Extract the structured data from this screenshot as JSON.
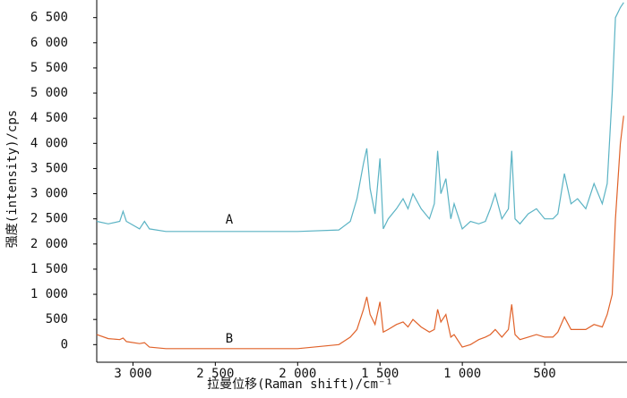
{
  "chart_data": {
    "type": "line",
    "xlabel": "拉曼位移(Raman shift)/cm⁻¹",
    "ylabel": "强度(intensity)/cps",
    "annotations": [
      "A",
      "B"
    ],
    "xlim": [
      3220,
      0
    ],
    "xticks": [
      {
        "value": 3000,
        "label": "3 000"
      },
      {
        "value": 2500,
        "label": "2 500"
      },
      {
        "value": 2000,
        "label": "2 000"
      },
      {
        "value": 1500,
        "label": "1 500"
      },
      {
        "value": 1000,
        "label": "1 000"
      },
      500
    ],
    "ylim": [
      -350,
      6850
    ],
    "yticks": [
      0,
      500,
      {
        "value": 1000,
        "label": "1 000"
      },
      {
        "value": 1500,
        "label": "1 500"
      },
      {
        "value": 2000,
        "label": "2 000"
      },
      {
        "value": 2500,
        "label": "2 500"
      },
      {
        "value": 3000,
        "label": "3 000"
      },
      {
        "value": 3500,
        "label": "3 500"
      },
      {
        "value": 4000,
        "label": "4 000"
      },
      {
        "value": 4500,
        "label": "4 500"
      },
      {
        "value": 5000,
        "label": "5 000"
      },
      {
        "value": 5500,
        "label": "5 500"
      },
      {
        "value": 6000,
        "label": "6 000"
      },
      {
        "value": 6500,
        "label": "6 500"
      }
    ],
    "x": [
      3220,
      3150,
      3080,
      3060,
      3040,
      2960,
      2930,
      2900,
      2800,
      2500,
      2000,
      1750,
      1680,
      1640,
      1600,
      1580,
      1560,
      1530,
      1500,
      1480,
      1450,
      1400,
      1360,
      1330,
      1300,
      1250,
      1200,
      1170,
      1150,
      1130,
      1100,
      1070,
      1050,
      1000,
      950,
      900,
      860,
      830,
      800,
      760,
      720,
      700,
      680,
      650,
      600,
      550,
      500,
      450,
      420,
      380,
      340,
      300,
      250,
      200,
      150,
      120,
      90,
      70,
      40,
      20
    ],
    "series": [
      {
        "name": "A",
        "color": "#5bb3c4",
        "values": [
          2450,
          2400,
          2450,
          2650,
          2450,
          2300,
          2450,
          2300,
          2250,
          2250,
          2250,
          2280,
          2450,
          2900,
          3600,
          3900,
          3100,
          2600,
          3700,
          2300,
          2500,
          2700,
          2900,
          2700,
          3000,
          2700,
          2500,
          2800,
          3850,
          3000,
          3300,
          2500,
          2800,
          2300,
          2450,
          2400,
          2450,
          2700,
          3000,
          2500,
          2700,
          3850,
          2500,
          2400,
          2600,
          2700,
          2500,
          2500,
          2600,
          3400,
          2800,
          2900,
          2700,
          3200,
          2800,
          3200,
          5000,
          6500,
          6700,
          6800
        ]
      },
      {
        "name": "B",
        "color": "#e0622a",
        "values": [
          200,
          120,
          100,
          130,
          60,
          20,
          40,
          -50,
          -80,
          -80,
          -80,
          0,
          150,
          300,
          700,
          950,
          600,
          400,
          850,
          250,
          300,
          400,
          450,
          350,
          500,
          350,
          250,
          300,
          700,
          450,
          600,
          150,
          200,
          -50,
          0,
          100,
          150,
          200,
          300,
          150,
          300,
          800,
          200,
          100,
          150,
          200,
          150,
          150,
          250,
          550,
          300,
          300,
          300,
          400,
          350,
          600,
          1000,
          2500,
          4000,
          4550
        ]
      }
    ]
  }
}
